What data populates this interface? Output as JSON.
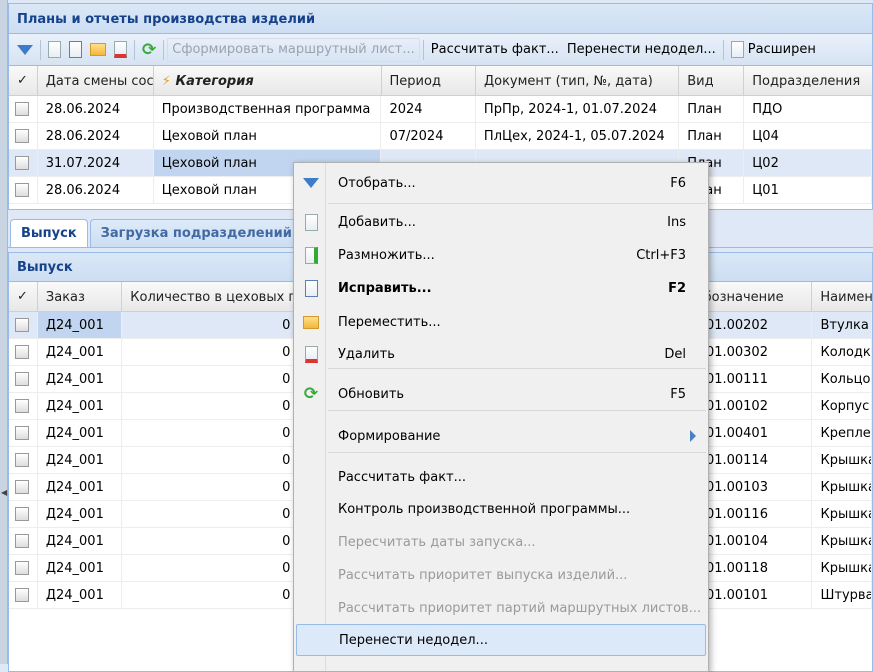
{
  "main_panel": {
    "title": "Планы и отчеты производства изделий",
    "toolbar": {
      "icons": [
        "filter-icon",
        "add-icon",
        "edit-icon",
        "move-icon",
        "delete-icon",
        "refresh-icon"
      ],
      "create_route": "Сформировать маршрутный лист...",
      "calc_fact": "Рассчитать факт...",
      "transfer": "Перенести недодел...",
      "extended": "Расширен"
    },
    "columns": [
      "Дата смены сост",
      "Категория",
      "Период",
      "Документ (тип, №, дата)",
      "Вид",
      "Подразделения"
    ],
    "rows": [
      {
        "date": "28.06.2024",
        "category": "Производственная программа",
        "period": "2024",
        "doc": "ПрПр, 2024-1, 01.07.2024",
        "kind": "План",
        "dept": "ПДО"
      },
      {
        "date": "28.06.2024",
        "category": "Цеховой план",
        "period": "07/2024",
        "doc": "ПлЦех, 2024-1, 05.07.2024",
        "kind": "План",
        "dept": "Ц04"
      },
      {
        "date": "31.07.2024",
        "category": "Цеховой план",
        "period": "",
        "doc": "",
        "kind": "План",
        "dept": "Ц02"
      },
      {
        "date": "28.06.2024",
        "category": "Цеховой план",
        "period": "",
        "doc": "",
        "kind": "План",
        "dept": "Ц01"
      }
    ]
  },
  "tabs": [
    {
      "label": "Выпуск",
      "active": true
    },
    {
      "label": "Загрузка подразделений",
      "active": false
    }
  ],
  "output_panel": {
    "title": "Выпуск",
    "columns": [
      "Заказ",
      "Количество в цеховых пл",
      "Обозначение",
      "Наимен"
    ],
    "rows": [
      {
        "order": "Д24_001",
        "qty": "0",
        "code": "001.00202",
        "name": "Втулка"
      },
      {
        "order": "Д24_001",
        "qty": "0",
        "code": "001.00302",
        "name": "Колодк"
      },
      {
        "order": "Д24_001",
        "qty": "0",
        "code": "001.00111",
        "name": "Кольцо"
      },
      {
        "order": "Д24_001",
        "qty": "0",
        "code": "001.00102",
        "name": "Корпус"
      },
      {
        "order": "Д24_001",
        "qty": "0",
        "code": "001.00401",
        "name": "Крепле"
      },
      {
        "order": "Д24_001",
        "qty": "0",
        "code": "001.00114",
        "name": "Крышка"
      },
      {
        "order": "Д24_001",
        "qty": "0",
        "code": "001.00103",
        "name": "Крышка"
      },
      {
        "order": "Д24_001",
        "qty": "0",
        "code": "001.00116",
        "name": "Крышка"
      },
      {
        "order": "Д24_001",
        "qty": "0",
        "code": "001.00104",
        "name": "Крышка"
      },
      {
        "order": "Д24_001",
        "qty": "0",
        "code": "001.00118",
        "name": "Крышка"
      },
      {
        "order": "Д24_001",
        "qty": "0",
        "code": "001.00101",
        "name": "Штурва"
      }
    ]
  },
  "context_menu": {
    "items": [
      {
        "label": "Отобрать...",
        "key": "F6",
        "icon": "filter-icon"
      },
      {
        "label": "Добавить...",
        "key": "Ins",
        "icon": "add-icon"
      },
      {
        "label": "Размножить...",
        "key": "Ctrl+F3",
        "icon": "duplicate-icon"
      },
      {
        "label": "Исправить...",
        "key": "F2",
        "icon": "edit-icon",
        "bold": true
      },
      {
        "label": "Переместить...",
        "key": "",
        "icon": "move-icon"
      },
      {
        "label": "Удалить",
        "key": "Del",
        "icon": "delete-icon"
      },
      {
        "label": "Обновить",
        "key": "F5",
        "icon": "refresh-icon"
      },
      {
        "label": "Формирование",
        "key": "",
        "submenu": true
      },
      {
        "label": "Рассчитать факт...",
        "key": ""
      },
      {
        "label": "Контроль производственной программы...",
        "key": ""
      },
      {
        "label": "Пересчитать даты запуска...",
        "key": "",
        "disabled": true
      },
      {
        "label": "Рассчитать приоритет выпуска изделий...",
        "key": "",
        "disabled": true
      },
      {
        "label": "Рассчитать приоритет партий маршрутных листов...",
        "key": "",
        "disabled": true
      },
      {
        "label": "Перенести недодел...",
        "key": "",
        "highlighted": true
      }
    ]
  }
}
